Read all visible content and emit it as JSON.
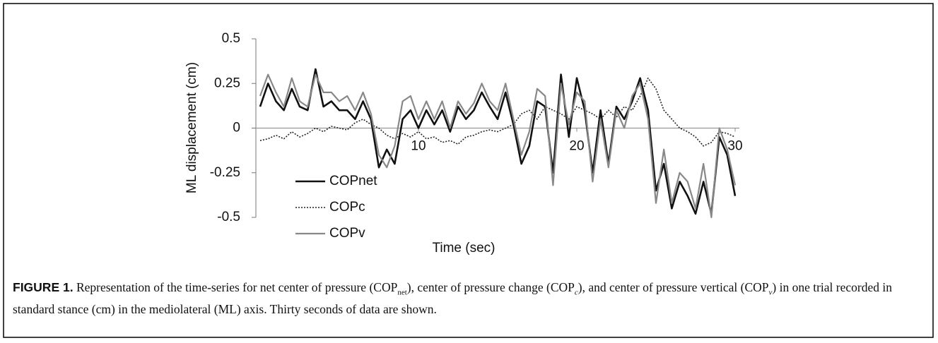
{
  "chart_data": {
    "type": "line",
    "y_label": "ML displacement (cm)",
    "x_label": "Time (sec)",
    "x": [
      0,
      0.5,
      1,
      1.5,
      2,
      2.5,
      3,
      3.5,
      4,
      4.5,
      5,
      5.5,
      6,
      6.5,
      7,
      7.5,
      8,
      8.5,
      9,
      9.5,
      10,
      10.5,
      11,
      11.5,
      12,
      12.5,
      13,
      13.5,
      14,
      14.5,
      15,
      15.5,
      16,
      16.5,
      17,
      17.5,
      18,
      18.5,
      19,
      19.5,
      20,
      20.5,
      21,
      21.5,
      22,
      22.5,
      23,
      23.5,
      24,
      24.5,
      25,
      25.5,
      26,
      26.5,
      27,
      27.5,
      28,
      28.5,
      29,
      29.5,
      30
    ],
    "series": [
      {
        "name": "COPnet",
        "color": "#111111",
        "style": "solid",
        "width": 2.6,
        "values": [
          0.12,
          0.25,
          0.15,
          0.1,
          0.22,
          0.12,
          0.1,
          0.33,
          0.12,
          0.15,
          0.1,
          0.1,
          0.05,
          0.15,
          0.05,
          -0.22,
          -0.12,
          -0.2,
          0.05,
          0.1,
          0.0,
          0.1,
          0.02,
          0.1,
          -0.02,
          0.12,
          0.05,
          0.1,
          0.2,
          0.12,
          0.05,
          0.2,
          0.02,
          -0.2,
          -0.1,
          0.15,
          0.12,
          -0.25,
          0.3,
          -0.05,
          0.28,
          0.1,
          -0.25,
          0.1,
          -0.2,
          0.12,
          0.05,
          0.15,
          0.28,
          0.1,
          -0.35,
          -0.2,
          -0.45,
          -0.3,
          -0.38,
          -0.48,
          -0.3,
          -0.48,
          -0.05,
          -0.15,
          -0.38
        ]
      },
      {
        "name": "COPc",
        "color": "#222222",
        "style": "dotted",
        "width": 1.6,
        "values": [
          -0.07,
          -0.06,
          -0.04,
          -0.06,
          -0.02,
          -0.05,
          -0.03,
          0.0,
          -0.02,
          0.01,
          0.0,
          -0.01,
          0.03,
          0.05,
          0.02,
          0.0,
          -0.04,
          -0.06,
          -0.03,
          -0.05,
          -0.02,
          -0.06,
          -0.05,
          -0.08,
          -0.07,
          -0.09,
          -0.05,
          -0.04,
          -0.02,
          -0.01,
          -0.02,
          0.0,
          0.02,
          0.08,
          0.1,
          0.05,
          0.12,
          0.1,
          0.08,
          0.05,
          0.12,
          0.1,
          0.08,
          0.05,
          0.1,
          0.06,
          0.12,
          0.1,
          0.18,
          0.28,
          0.22,
          0.1,
          0.05,
          0.0,
          -0.02,
          -0.05,
          -0.1,
          -0.08,
          -0.02,
          -0.03,
          -0.05
        ]
      },
      {
        "name": "COPv",
        "color": "#888888",
        "style": "solid",
        "width": 2.2,
        "values": [
          0.18,
          0.3,
          0.2,
          0.12,
          0.28,
          0.15,
          0.12,
          0.3,
          0.2,
          0.2,
          0.15,
          0.18,
          0.1,
          0.2,
          0.08,
          -0.15,
          -0.22,
          -0.1,
          0.15,
          0.18,
          0.05,
          0.15,
          0.05,
          0.15,
          0.0,
          0.15,
          0.08,
          0.14,
          0.25,
          0.15,
          0.1,
          0.25,
          0.05,
          -0.15,
          -0.02,
          0.22,
          0.18,
          -0.32,
          0.25,
          0.02,
          0.2,
          0.15,
          -0.3,
          0.05,
          -0.22,
          0.1,
          0.0,
          0.18,
          0.25,
          0.05,
          -0.42,
          -0.12,
          -0.42,
          -0.25,
          -0.3,
          -0.45,
          -0.2,
          -0.5,
          0.0,
          -0.12,
          -0.32
        ]
      }
    ],
    "xlim": [
      0,
      30
    ],
    "xticks": [
      10,
      20,
      30
    ],
    "ylim": [
      -0.5,
      0.5
    ],
    "yticks": [
      0.5,
      0.25,
      0,
      -0.25,
      -0.5
    ],
    "legend": "lower left"
  },
  "caption": {
    "label": "FIGURE 1.",
    "parts": [
      "Representation of the time-series for net center of pressure (COP",
      "net",
      "), center of pressure change (COP",
      "c",
      "), and center of pressure vertical (COP",
      "v",
      ") in one trial recorded in standard stance (cm) in the mediolateral (ML) axis. Thirty seconds of data are shown."
    ]
  }
}
